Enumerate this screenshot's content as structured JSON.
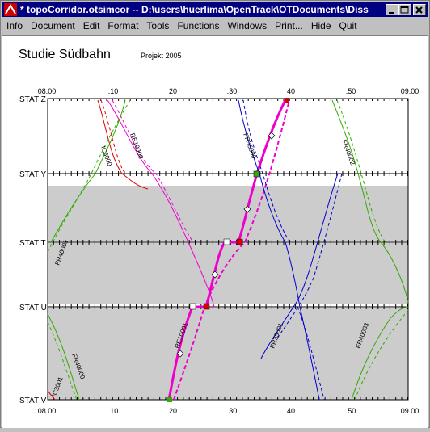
{
  "window": {
    "title": "* topoCorridor.otsimcor  --  D:\\users\\huerlima\\OpenTrack\\OTDocuments\\Diss"
  },
  "menu": [
    "Info",
    "Document",
    "Edit",
    "Format",
    "Tools",
    "Functions",
    "Windows",
    "Print...",
    "Hide",
    "Quit"
  ],
  "graph": {
    "title": "Studie Südbahn",
    "subtitle": "Projekt 2005",
    "time_ticks": [
      "08.00",
      ".10",
      "20",
      ".30",
      "40",
      ".50",
      "09.00"
    ],
    "stations": [
      "STAT Z",
      "STAT Y",
      "STAT T",
      "STAT U",
      "STAT V"
    ],
    "train_labels": [
      "IC3000",
      "RE10000",
      "FR35000",
      "FR40002",
      "FR40001",
      "RE10001",
      "FR35001",
      "FR40003",
      "IC3001",
      "FR40000"
    ],
    "colors": {
      "ic": "#dd0000",
      "re": "#ee00cc",
      "fr35": "#0000cc",
      "fr40": "#33aa00",
      "occupied": "#cccccc"
    }
  }
}
